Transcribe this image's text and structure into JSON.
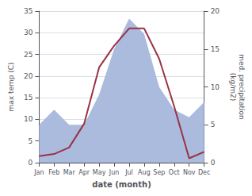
{
  "chart_data": {
    "type": "line",
    "categories": [
      "Jan",
      "Feb",
      "Mar",
      "Apr",
      "May",
      "Jun",
      "Jul",
      "Aug",
      "Sep",
      "Oct",
      "Nov",
      "Dec"
    ],
    "xlabel": "date (month)",
    "ylabel": "max temp (C)",
    "y2label": "med. precipitation\n(kg/m2)",
    "series": [
      {
        "type": "area",
        "color": "#aabbdd",
        "axis": "y2",
        "values": [
          5.0,
          7.0,
          5.0,
          5.0,
          9.0,
          15.0,
          19.0,
          17.0,
          10.0,
          7.0,
          6.0,
          8.0
        ]
      },
      {
        "type": "line",
        "color": "#993344",
        "values": [
          1.5,
          2.0,
          3.5,
          9.0,
          22.0,
          27.0,
          31.0,
          31.0,
          24.0,
          13.0,
          1.0,
          2.5
        ]
      }
    ],
    "ylim": [
      0,
      35
    ],
    "yticks": [
      0,
      5,
      10,
      15,
      20,
      25,
      30,
      35
    ],
    "y2lim": [
      0,
      20
    ],
    "y2ticks": [
      0,
      5,
      10,
      15,
      20
    ],
    "grid": true
  }
}
